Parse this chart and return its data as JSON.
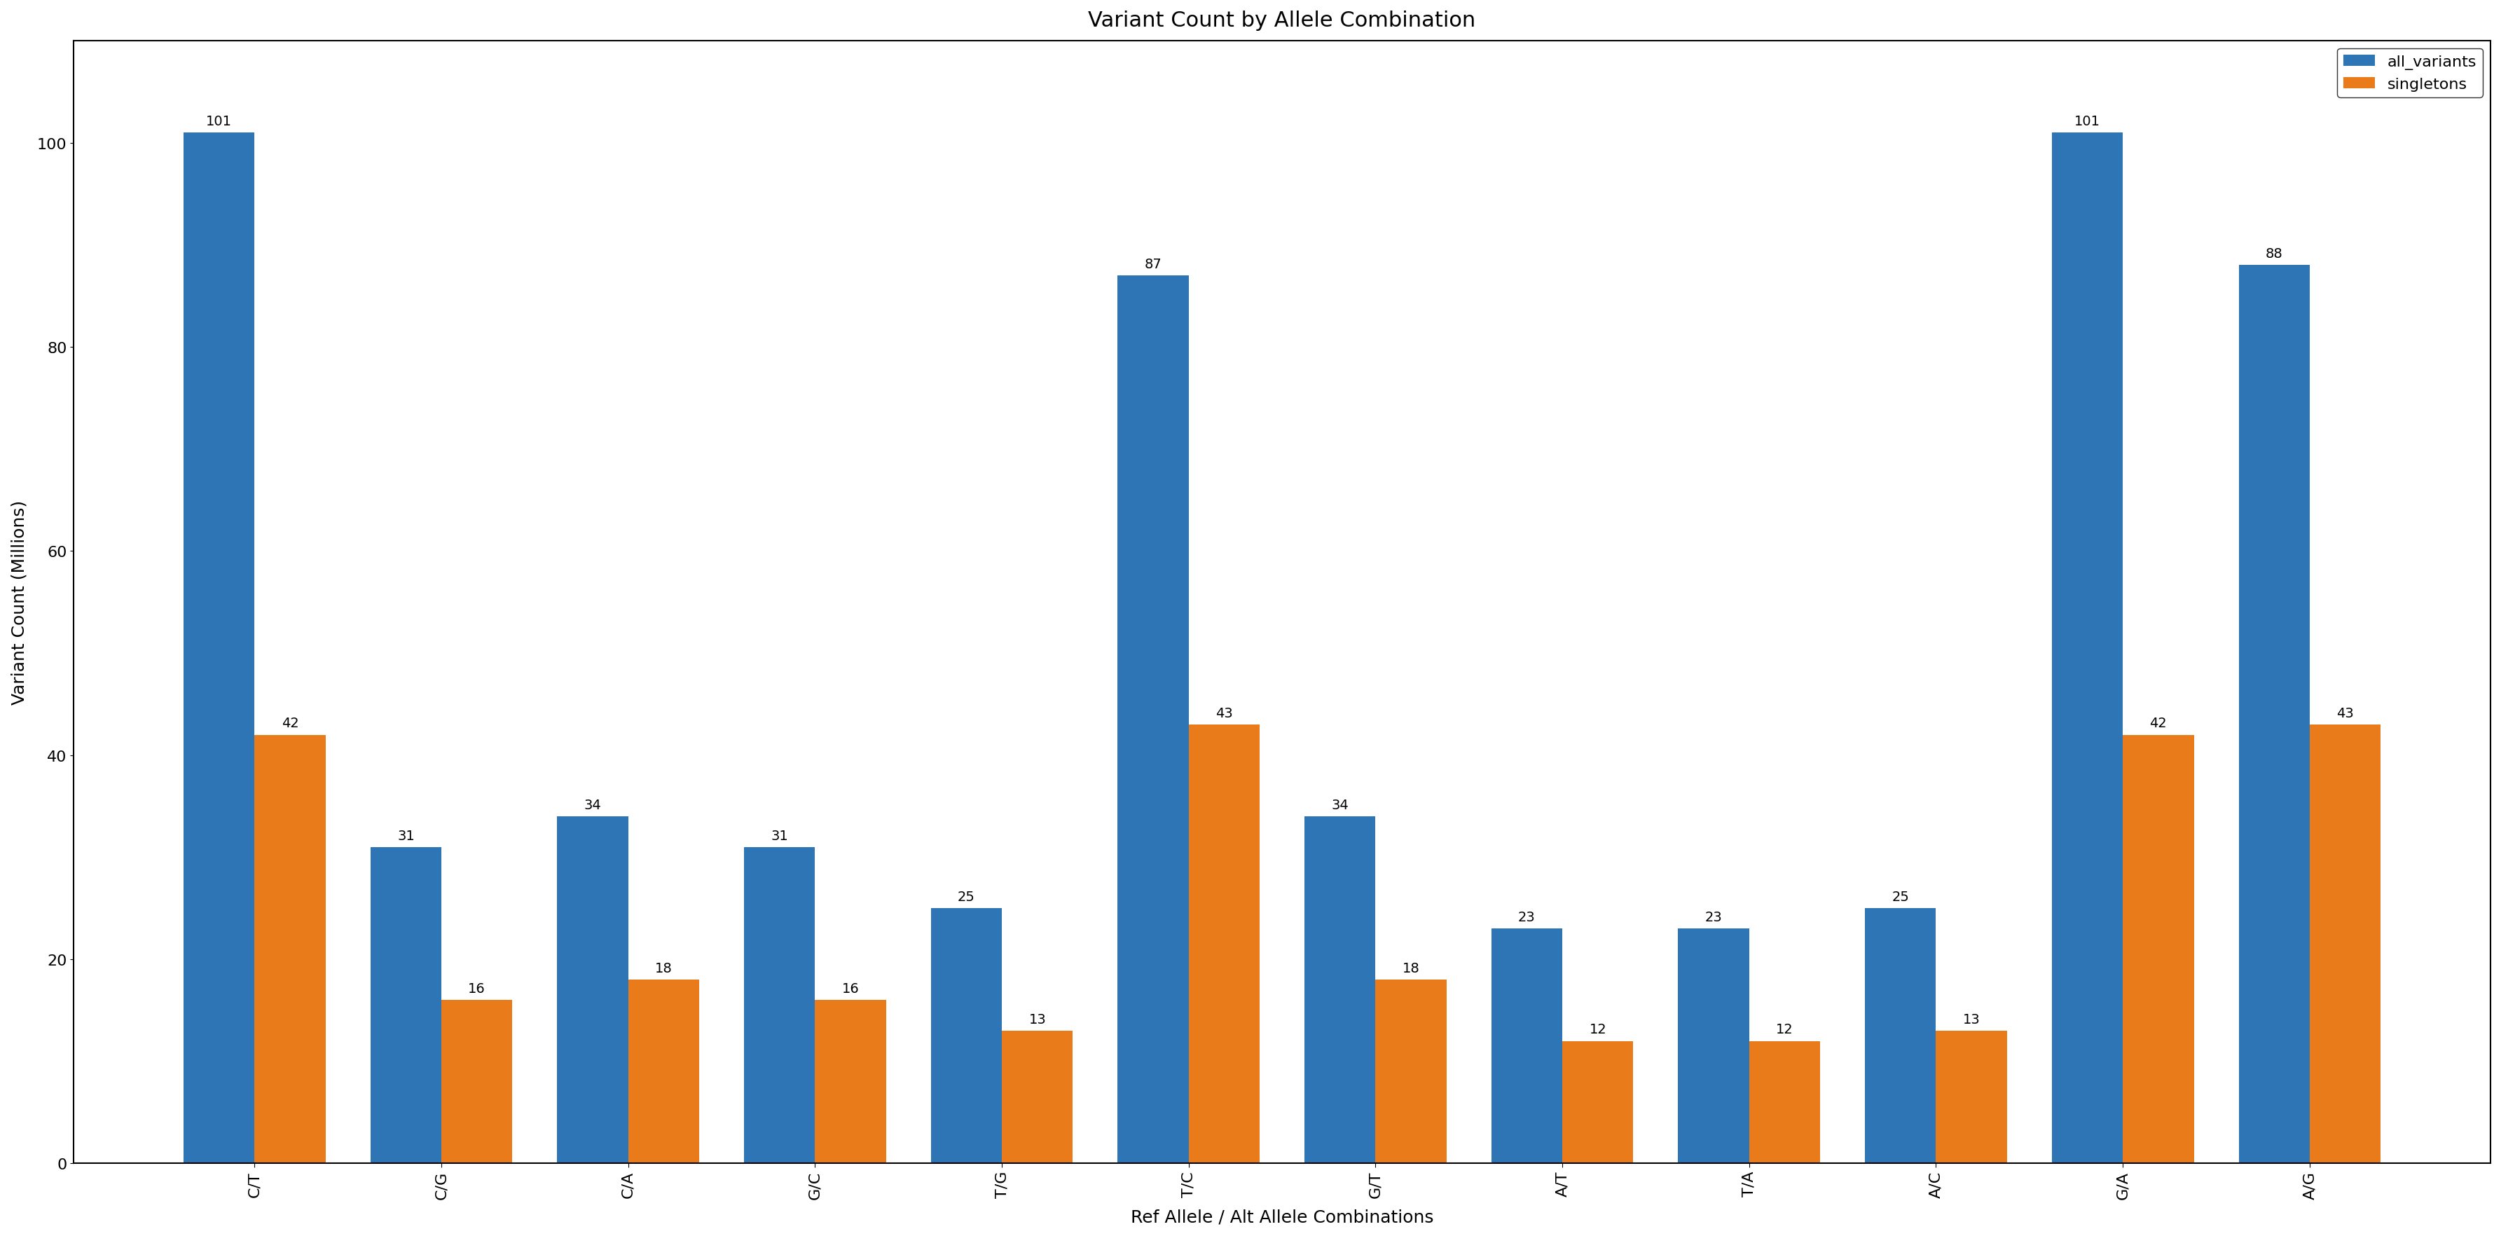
{
  "title": "Variant Count by Allele Combination",
  "xlabel": "Ref Allele / Alt Allele Combinations",
  "ylabel": "Variant Count (Millions)",
  "categories": [
    "C/T",
    "C/G",
    "C/A",
    "G/C",
    "T/G",
    "T/C",
    "G/T",
    "A/T",
    "T/A",
    "A/C",
    "G/A",
    "A/G"
  ],
  "all_variants": [
    101,
    31,
    34,
    31,
    25,
    87,
    34,
    23,
    23,
    25,
    101,
    88
  ],
  "singletons": [
    42,
    16,
    18,
    16,
    13,
    43,
    18,
    12,
    12,
    13,
    42,
    43
  ],
  "color_all": "#2E75B6",
  "color_singletons": "#E97B1A",
  "legend_labels": [
    "all_variants",
    "singletons"
  ],
  "bar_width": 0.38,
  "ylim": [
    0,
    110
  ],
  "yticks": [
    0,
    20,
    40,
    60,
    80,
    100
  ],
  "title_fontsize": 22,
  "label_fontsize": 18,
  "tick_fontsize": 16,
  "annotation_fontsize": 14,
  "legend_fontsize": 16
}
